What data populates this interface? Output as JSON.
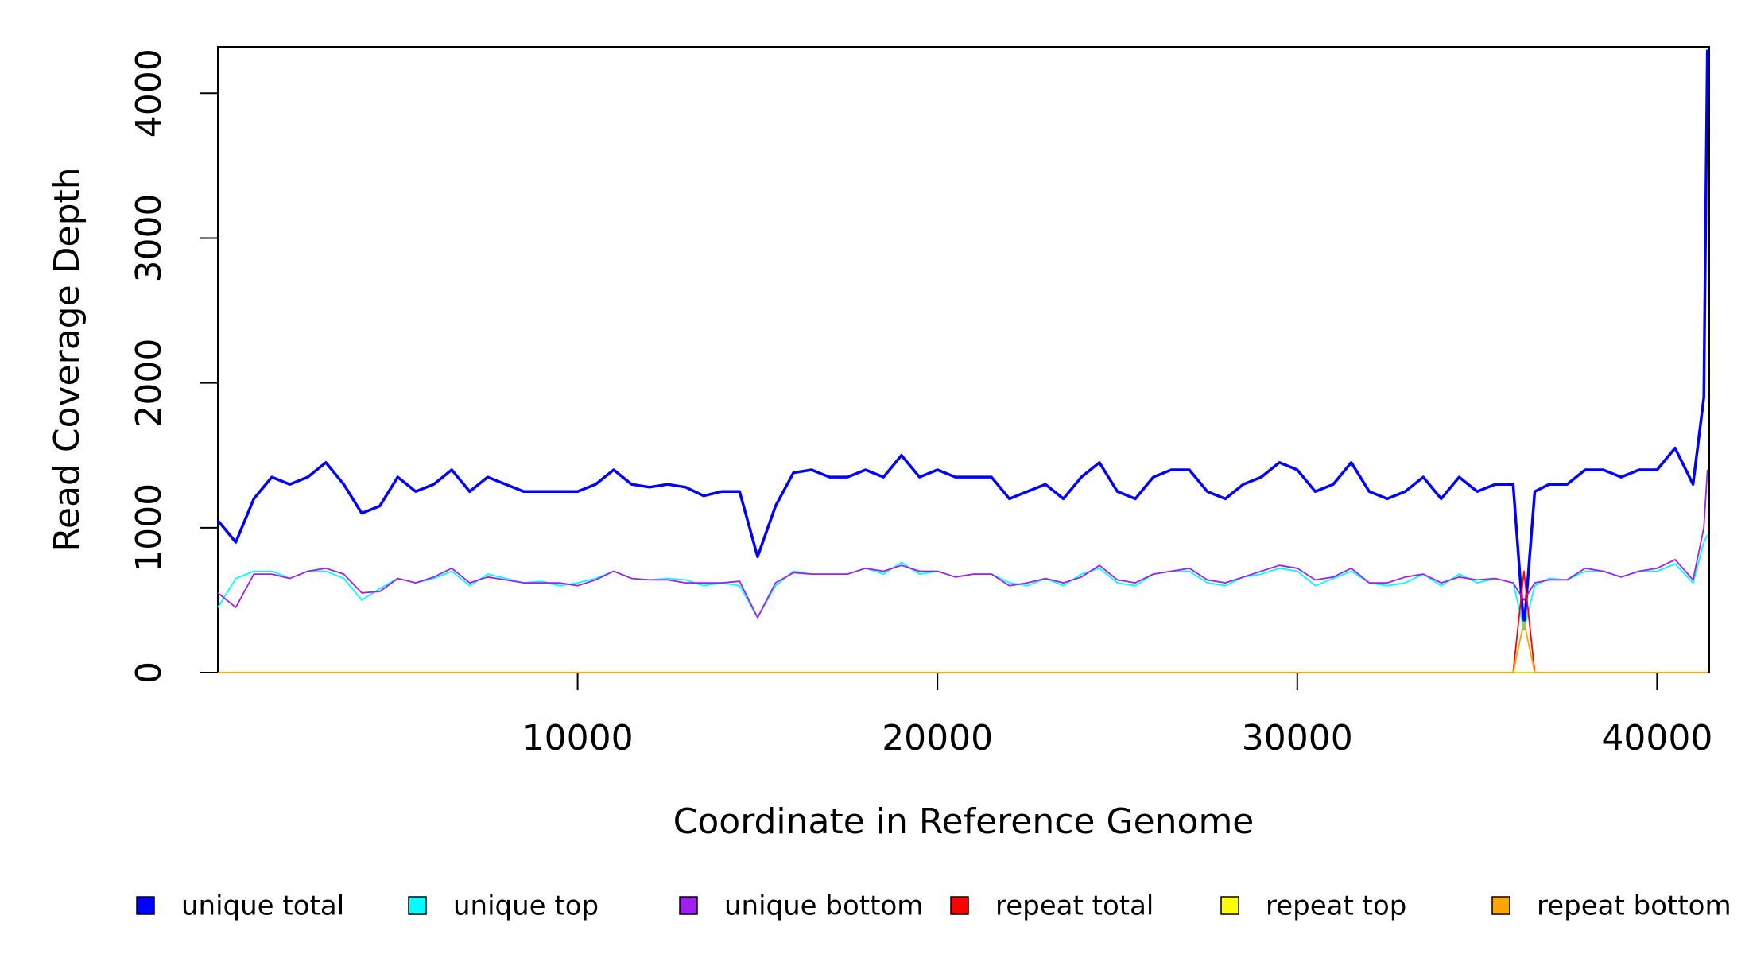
{
  "chart_data": {
    "type": "line",
    "x_label": "Coordinate in Reference Genome",
    "y_label": "Read Coverage Depth",
    "x": [
      0,
      500,
      1000,
      1500,
      2000,
      2500,
      3000,
      3500,
      4000,
      4500,
      5000,
      5500,
      6000,
      6500,
      7000,
      7500,
      8000,
      8500,
      9000,
      9500,
      10000,
      10500,
      11000,
      11500,
      12000,
      12500,
      13000,
      13500,
      14000,
      14500,
      15000,
      15500,
      16000,
      16500,
      17000,
      17500,
      18000,
      18500,
      19000,
      19500,
      20000,
      20500,
      21000,
      21500,
      22000,
      22500,
      23000,
      23500,
      24000,
      24500,
      25000,
      25500,
      26000,
      26500,
      27000,
      27500,
      28000,
      28500,
      29000,
      29500,
      30000,
      30500,
      31000,
      31500,
      32000,
      32500,
      33000,
      33500,
      34000,
      34500,
      35000,
      35500,
      36000,
      36300,
      36600,
      37000,
      37500,
      38000,
      38500,
      39000,
      39500,
      40000,
      40500,
      41000,
      41300,
      41400
    ],
    "series": [
      {
        "name": "unique total",
        "color": "#0000ff",
        "values": [
          1050,
          900,
          1200,
          1350,
          1300,
          1350,
          1450,
          1300,
          1100,
          1150,
          1350,
          1250,
          1300,
          1400,
          1250,
          1350,
          1300,
          1250,
          1250,
          1250,
          1250,
          1300,
          1400,
          1300,
          1280,
          1300,
          1280,
          1220,
          1250,
          1250,
          800,
          1150,
          1380,
          1400,
          1350,
          1350,
          1400,
          1350,
          1500,
          1350,
          1400,
          1350,
          1350,
          1350,
          1200,
          1250,
          1300,
          1200,
          1350,
          1450,
          1250,
          1200,
          1350,
          1400,
          1400,
          1250,
          1200,
          1300,
          1350,
          1450,
          1400,
          1250,
          1300,
          1450,
          1250,
          1200,
          1250,
          1350,
          1200,
          1350,
          1250,
          1300,
          1300,
          300,
          1250,
          1300,
          1300,
          1400,
          1400,
          1350,
          1400,
          1400,
          1550,
          1300,
          1900,
          4300
        ]
      },
      {
        "name": "unique top",
        "color": "#00ffff",
        "values": [
          450,
          650,
          700,
          700,
          650,
          700,
          700,
          650,
          500,
          580,
          650,
          620,
          650,
          700,
          600,
          680,
          650,
          620,
          630,
          600,
          620,
          650,
          700,
          650,
          640,
          650,
          640,
          600,
          620,
          600,
          380,
          600,
          700,
          680,
          680,
          680,
          720,
          680,
          760,
          680,
          700,
          660,
          680,
          680,
          620,
          600,
          650,
          600,
          680,
          720,
          620,
          600,
          680,
          700,
          700,
          620,
          600,
          660,
          680,
          720,
          700,
          600,
          650,
          700,
          620,
          600,
          620,
          680,
          600,
          680,
          620,
          650,
          620,
          300,
          600,
          650,
          640,
          700,
          700,
          660,
          700,
          700,
          750,
          620,
          900,
          950
        ]
      },
      {
        "name": "unique bottom",
        "color": "#a020f0",
        "values": [
          550,
          450,
          680,
          680,
          650,
          700,
          720,
          680,
          550,
          560,
          650,
          620,
          660,
          720,
          620,
          660,
          640,
          620,
          620,
          620,
          600,
          640,
          700,
          650,
          640,
          640,
          620,
          620,
          620,
          630,
          380,
          620,
          690,
          680,
          680,
          680,
          720,
          700,
          740,
          700,
          700,
          660,
          680,
          680,
          600,
          620,
          650,
          620,
          660,
          740,
          640,
          620,
          680,
          700,
          720,
          640,
          620,
          660,
          700,
          740,
          720,
          640,
          660,
          720,
          620,
          620,
          660,
          680,
          620,
          660,
          640,
          650,
          620,
          500,
          620,
          640,
          640,
          720,
          700,
          660,
          700,
          720,
          780,
          640,
          1000,
          1400
        ]
      },
      {
        "name": "repeat total",
        "color": "#ff0000",
        "values": [
          0,
          0,
          0,
          0,
          0,
          0,
          0,
          0,
          0,
          0,
          0,
          0,
          0,
          0,
          0,
          0,
          0,
          0,
          0,
          0,
          0,
          0,
          0,
          0,
          0,
          0,
          0,
          0,
          0,
          0,
          0,
          0,
          0,
          0,
          0,
          0,
          0,
          0,
          0,
          0,
          0,
          0,
          0,
          0,
          0,
          0,
          0,
          0,
          0,
          0,
          0,
          0,
          0,
          0,
          0,
          0,
          0,
          0,
          0,
          0,
          0,
          0,
          0,
          0,
          0,
          0,
          0,
          0,
          0,
          0,
          0,
          0,
          0,
          700,
          0,
          0,
          0,
          0,
          0,
          0,
          0,
          0,
          0,
          0,
          0,
          0
        ]
      },
      {
        "name": "repeat top",
        "color": "#ffff00",
        "values": [
          0,
          0,
          0,
          0,
          0,
          0,
          0,
          0,
          0,
          0,
          0,
          0,
          0,
          0,
          0,
          0,
          0,
          0,
          0,
          0,
          0,
          0,
          0,
          0,
          0,
          0,
          0,
          0,
          0,
          0,
          0,
          0,
          0,
          0,
          0,
          0,
          0,
          0,
          0,
          0,
          0,
          0,
          0,
          0,
          0,
          0,
          0,
          0,
          0,
          0,
          0,
          0,
          0,
          0,
          0,
          0,
          0,
          0,
          0,
          0,
          0,
          0,
          0,
          0,
          0,
          0,
          0,
          0,
          0,
          0,
          0,
          0,
          0,
          0,
          0,
          0,
          0,
          0,
          0,
          0,
          0,
          0,
          0,
          0,
          0,
          0
        ]
      },
      {
        "name": "repeat bottom",
        "color": "#ffa500",
        "values": [
          0,
          0,
          0,
          0,
          0,
          0,
          0,
          0,
          0,
          0,
          0,
          0,
          0,
          0,
          0,
          0,
          0,
          0,
          0,
          0,
          0,
          0,
          0,
          0,
          0,
          0,
          0,
          0,
          0,
          0,
          0,
          0,
          0,
          0,
          0,
          0,
          0,
          0,
          0,
          0,
          0,
          0,
          0,
          0,
          0,
          0,
          0,
          0,
          0,
          0,
          0,
          0,
          0,
          0,
          0,
          0,
          0,
          0,
          0,
          0,
          0,
          0,
          0,
          0,
          0,
          0,
          0,
          0,
          0,
          0,
          0,
          0,
          0,
          350,
          0,
          0,
          0,
          0,
          0,
          0,
          0,
          0,
          0,
          0,
          0,
          0
        ]
      }
    ],
    "xlim": [
      0,
      41450
    ],
    "ylim": [
      0,
      4320
    ],
    "xticks": [
      10000,
      20000,
      30000,
      40000
    ],
    "yticks": [
      0,
      1000,
      2000,
      3000,
      4000
    ],
    "legend": "bottom"
  }
}
